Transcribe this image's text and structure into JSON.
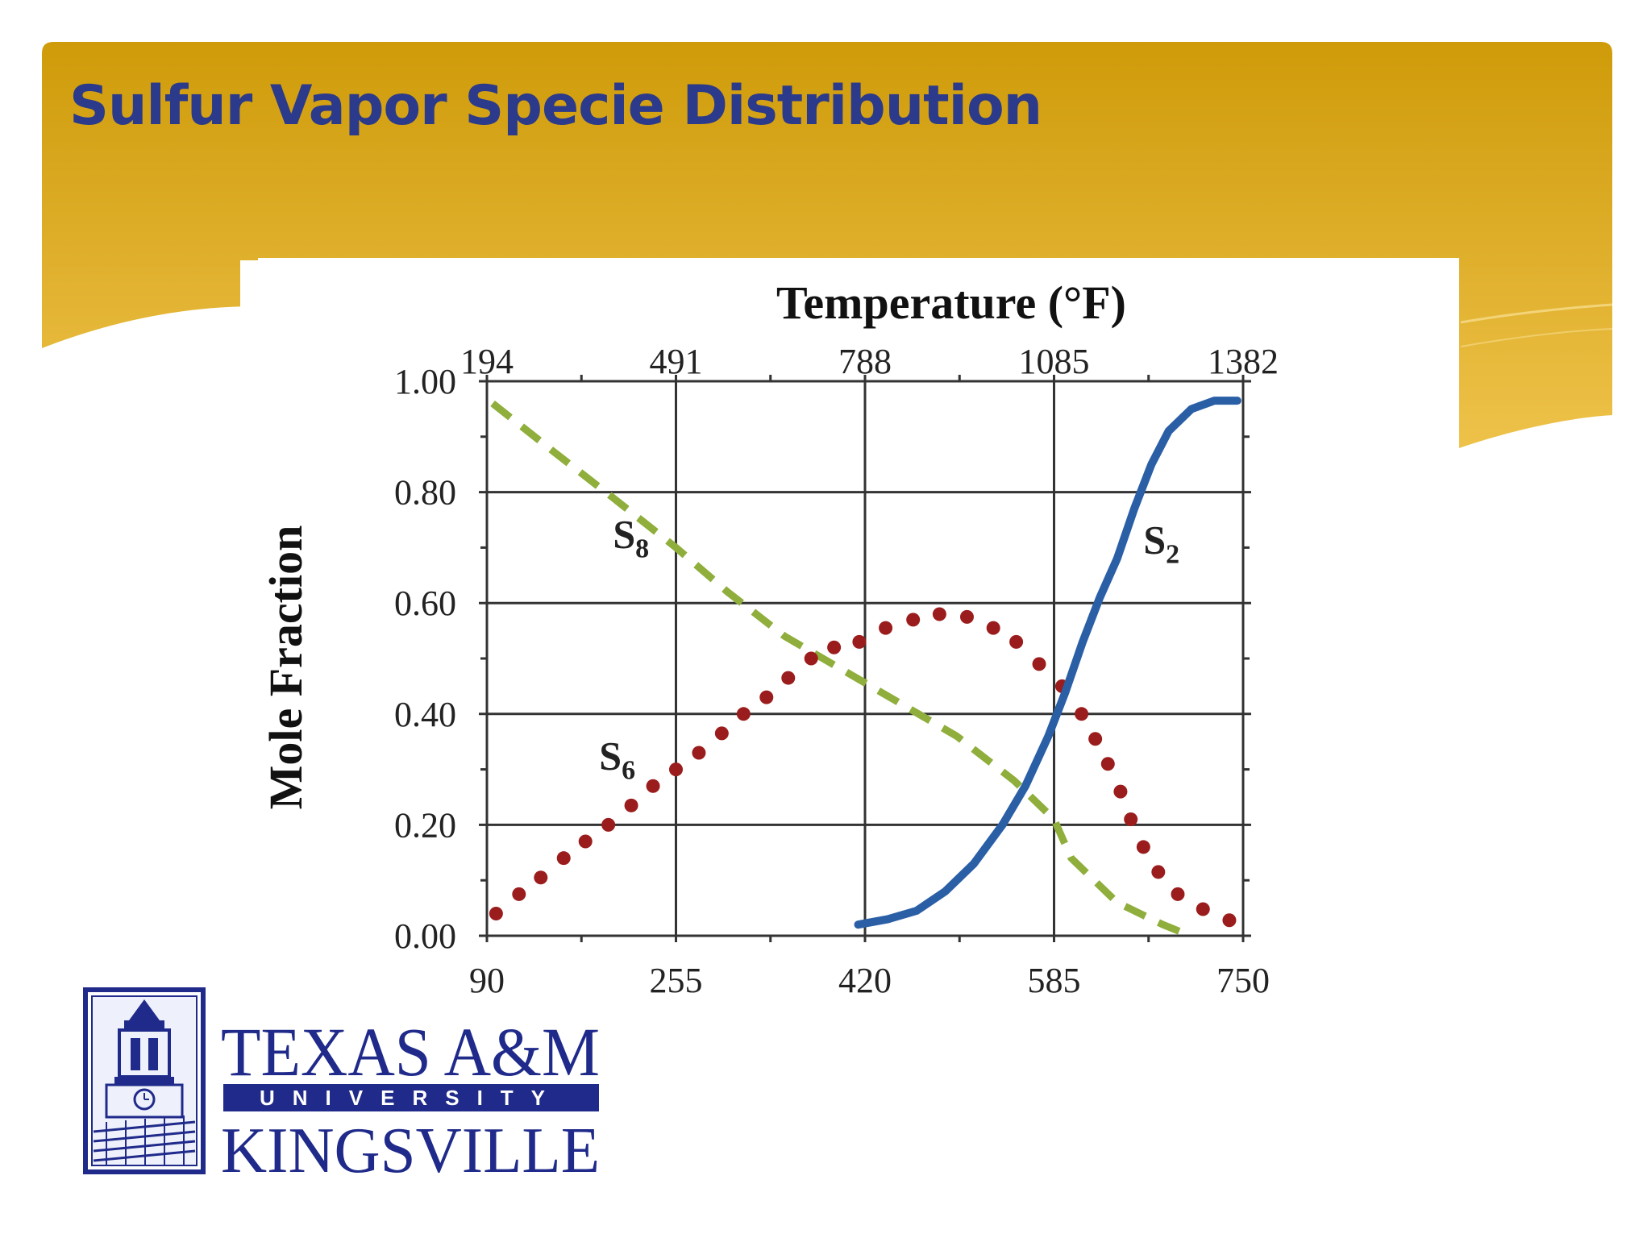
{
  "slide": {
    "title": "Sulfur Vapor Specie Distribution"
  },
  "colors": {
    "banner_top": "#cf9b0a",
    "banner_bottom": "#eec24a",
    "title": "#2b3a8a",
    "s8": "#8fae3c",
    "s6": "#9b1c1c",
    "s2": "#2a5fa6",
    "grid": "#333333",
    "logo_blue": "#1f2a8a"
  },
  "chart_data": {
    "type": "line",
    "title": "",
    "top_axis_label": "Temperature (°F)",
    "top_ticks": [
      "194",
      "491",
      "788",
      "1085",
      "1382"
    ],
    "xlabel": "",
    "ylabel": "Mole Fraction",
    "x_ticks": [
      "90",
      "255",
      "420",
      "585",
      "750"
    ],
    "y_ticks": [
      "0.00",
      "0.20",
      "0.40",
      "0.60",
      "0.80",
      "1.00"
    ],
    "xlim": [
      90,
      750
    ],
    "ylim": [
      0,
      1
    ],
    "grid": true,
    "series": [
      {
        "name": "S8",
        "label_main": "S",
        "label_sub": "8",
        "style": "dashed",
        "label_at": [
          200,
          0.7
        ],
        "points": [
          [
            95,
            0.96
          ],
          [
            150,
            0.87
          ],
          [
            200,
            0.79
          ],
          [
            255,
            0.7
          ],
          [
            300,
            0.62
          ],
          [
            350,
            0.54
          ],
          [
            400,
            0.48
          ],
          [
            450,
            0.42
          ],
          [
            500,
            0.36
          ],
          [
            550,
            0.28
          ],
          [
            585,
            0.21
          ],
          [
            600,
            0.14
          ],
          [
            640,
            0.06
          ],
          [
            680,
            0.02
          ],
          [
            704,
            0.0
          ]
        ]
      },
      {
        "name": "S6",
        "label_main": "S",
        "label_sub": "6",
        "style": "dotted",
        "label_at": [
          188,
          0.3
        ],
        "points": [
          [
            98,
            0.04
          ],
          [
            118,
            0.075
          ],
          [
            137,
            0.105
          ],
          [
            157,
            0.14
          ],
          [
            176,
            0.17
          ],
          [
            196,
            0.2
          ],
          [
            216,
            0.235
          ],
          [
            235,
            0.27
          ],
          [
            255,
            0.3
          ],
          [
            275,
            0.33
          ],
          [
            295,
            0.365
          ],
          [
            314,
            0.4
          ],
          [
            334,
            0.43
          ],
          [
            353,
            0.465
          ],
          [
            373,
            0.5
          ],
          [
            393,
            0.52
          ],
          [
            415,
            0.53
          ],
          [
            438,
            0.555
          ],
          [
            462,
            0.57
          ],
          [
            485,
            0.58
          ],
          [
            509,
            0.575
          ],
          [
            532,
            0.555
          ],
          [
            552,
            0.53
          ],
          [
            572,
            0.49
          ],
          [
            592,
            0.45
          ],
          [
            609,
            0.4
          ],
          [
            621,
            0.355
          ],
          [
            632,
            0.31
          ],
          [
            643,
            0.26
          ],
          [
            652,
            0.21
          ],
          [
            663,
            0.16
          ],
          [
            676,
            0.115
          ],
          [
            693,
            0.075
          ],
          [
            715,
            0.048
          ],
          [
            738,
            0.028
          ]
        ]
      },
      {
        "name": "S2",
        "label_main": "S",
        "label_sub": "2",
        "style": "solid",
        "label_at": [
          663,
          0.69
        ],
        "points": [
          [
            414,
            0.02
          ],
          [
            440,
            0.03
          ],
          [
            465,
            0.045
          ],
          [
            490,
            0.08
          ],
          [
            515,
            0.13
          ],
          [
            540,
            0.2
          ],
          [
            560,
            0.27
          ],
          [
            580,
            0.36
          ],
          [
            595,
            0.44
          ],
          [
            610,
            0.53
          ],
          [
            625,
            0.61
          ],
          [
            640,
            0.68
          ],
          [
            655,
            0.77
          ],
          [
            670,
            0.85
          ],
          [
            685,
            0.91
          ],
          [
            705,
            0.95
          ],
          [
            725,
            0.965
          ],
          [
            745,
            0.965
          ]
        ]
      }
    ]
  },
  "logo": {
    "line1": "TEXAS A&M",
    "line2": "UNIVERSITY",
    "line3": "KINGSVILLE",
    "icon": "college-tower-seal-icon"
  }
}
